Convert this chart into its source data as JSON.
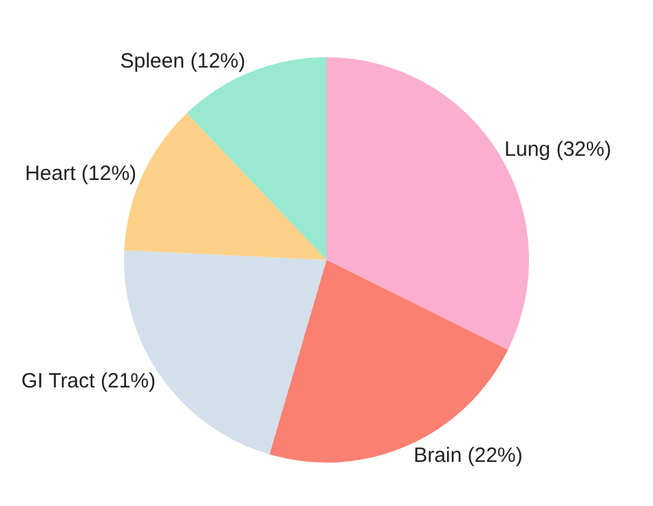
{
  "chart_data": {
    "type": "pie",
    "categories": [
      "Lung (32%)",
      "Brain (22%)",
      "GI Tract (21%)",
      "Heart (12%)",
      "Spleen (12%)"
    ],
    "values": [
      32,
      22,
      21,
      12,
      12
    ],
    "colors": [
      "#fbafcf",
      "#fa8072",
      "#d3dfea",
      "#fdd088",
      "#98e9d0"
    ],
    "legend": false
  }
}
